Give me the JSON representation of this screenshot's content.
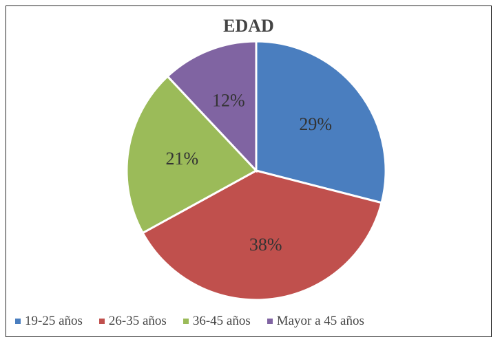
{
  "chart_data": {
    "type": "pie",
    "title": "EDAD",
    "categories": [
      "19-25 años",
      "26-35 años",
      "36-45 años",
      "Mayor a 45 años"
    ],
    "values": [
      29,
      38,
      21,
      12
    ],
    "data_labels": [
      "29%",
      "38%",
      "21%",
      "12%"
    ],
    "colors": [
      "#4a7ebf",
      "#c0504d",
      "#9bbb59",
      "#8064a2"
    ],
    "legend": "bottom"
  }
}
